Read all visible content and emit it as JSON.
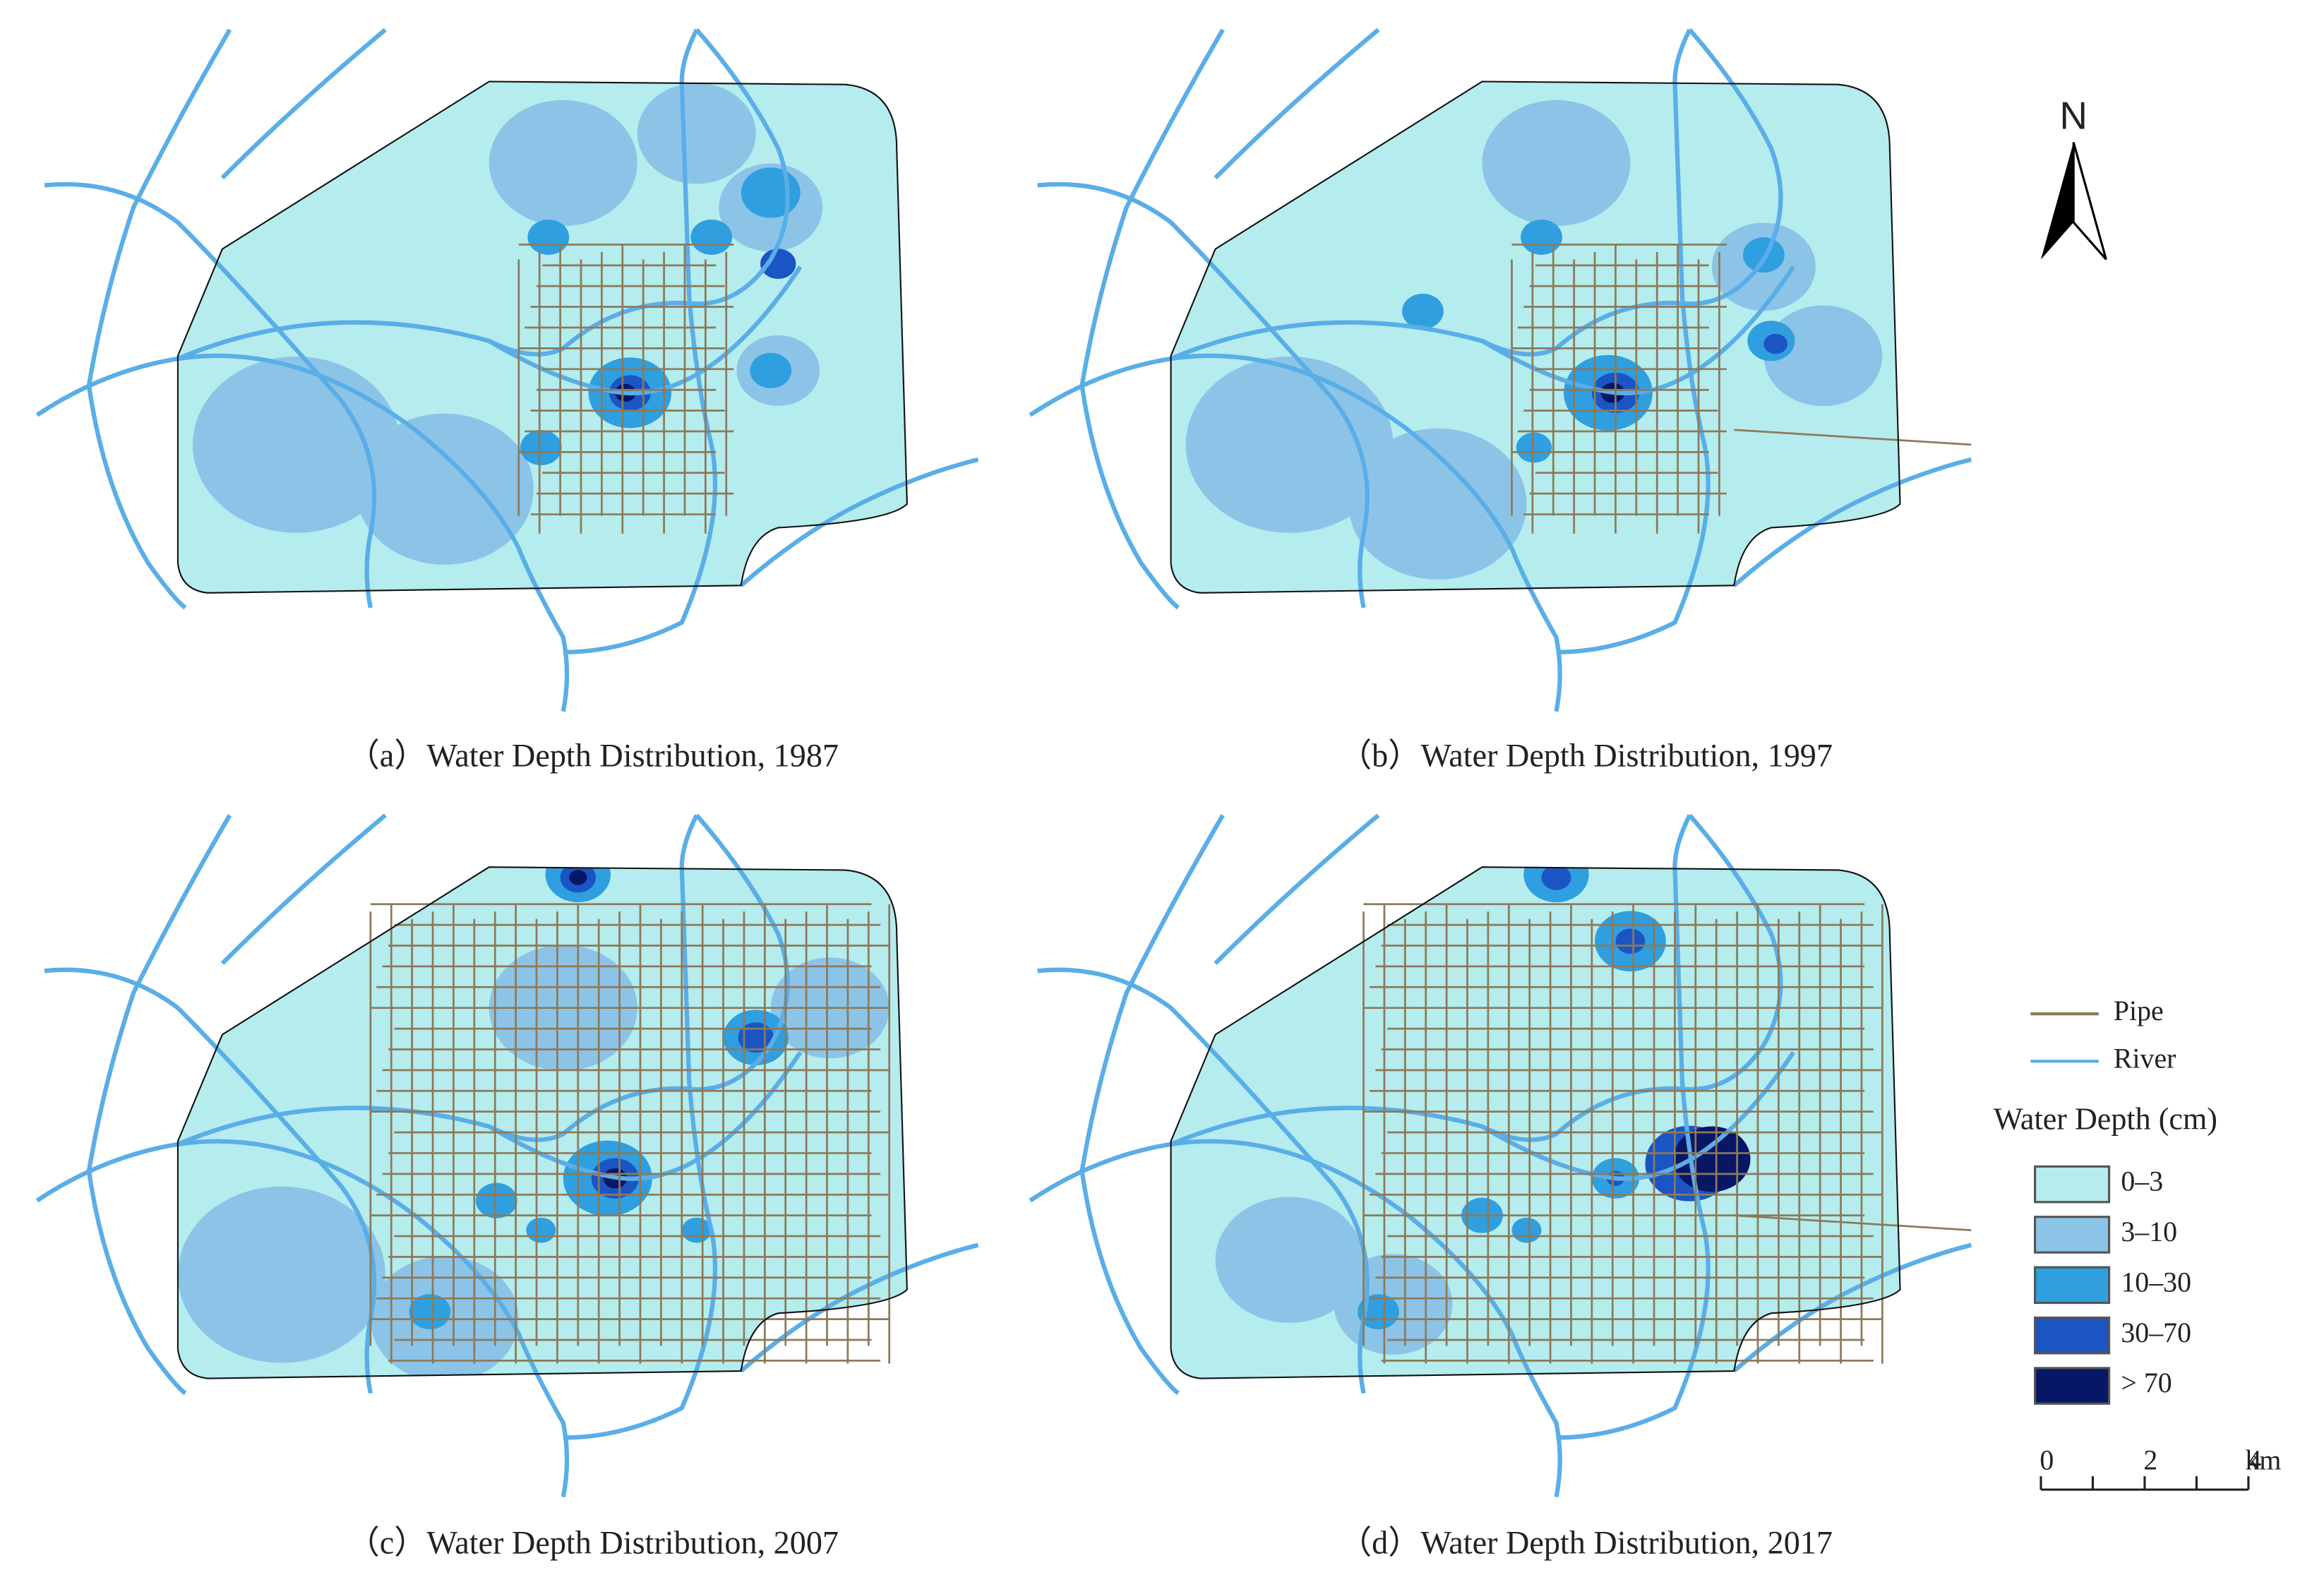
{
  "panels": [
    {
      "caption": "（a）Water Depth Distribution, 1987"
    },
    {
      "caption": "（b）Water Depth Distribution, 1997"
    },
    {
      "caption": "（c）Water Depth Distribution, 2007"
    },
    {
      "caption": "（d）Water Depth Distribution, 2017"
    }
  ],
  "north": "N",
  "legend": {
    "lines": [
      {
        "label": "Pipe",
        "color": "#8c7a5a"
      },
      {
        "label": "River",
        "color": "#5aaee8"
      }
    ],
    "title": "Water Depth (cm)",
    "classes": [
      {
        "label": "0–3",
        "color": "#b5ecee"
      },
      {
        "label": "3–10",
        "color": "#8cc4e8"
      },
      {
        "label": "10–30",
        "color": "#2f9fe0"
      },
      {
        "label": "30–70",
        "color": "#1b55c4"
      },
      {
        "label": "> 70",
        "color": "#071766"
      }
    ]
  },
  "scale": {
    "ticks": [
      "0",
      "2",
      "4"
    ],
    "unit": "km"
  }
}
